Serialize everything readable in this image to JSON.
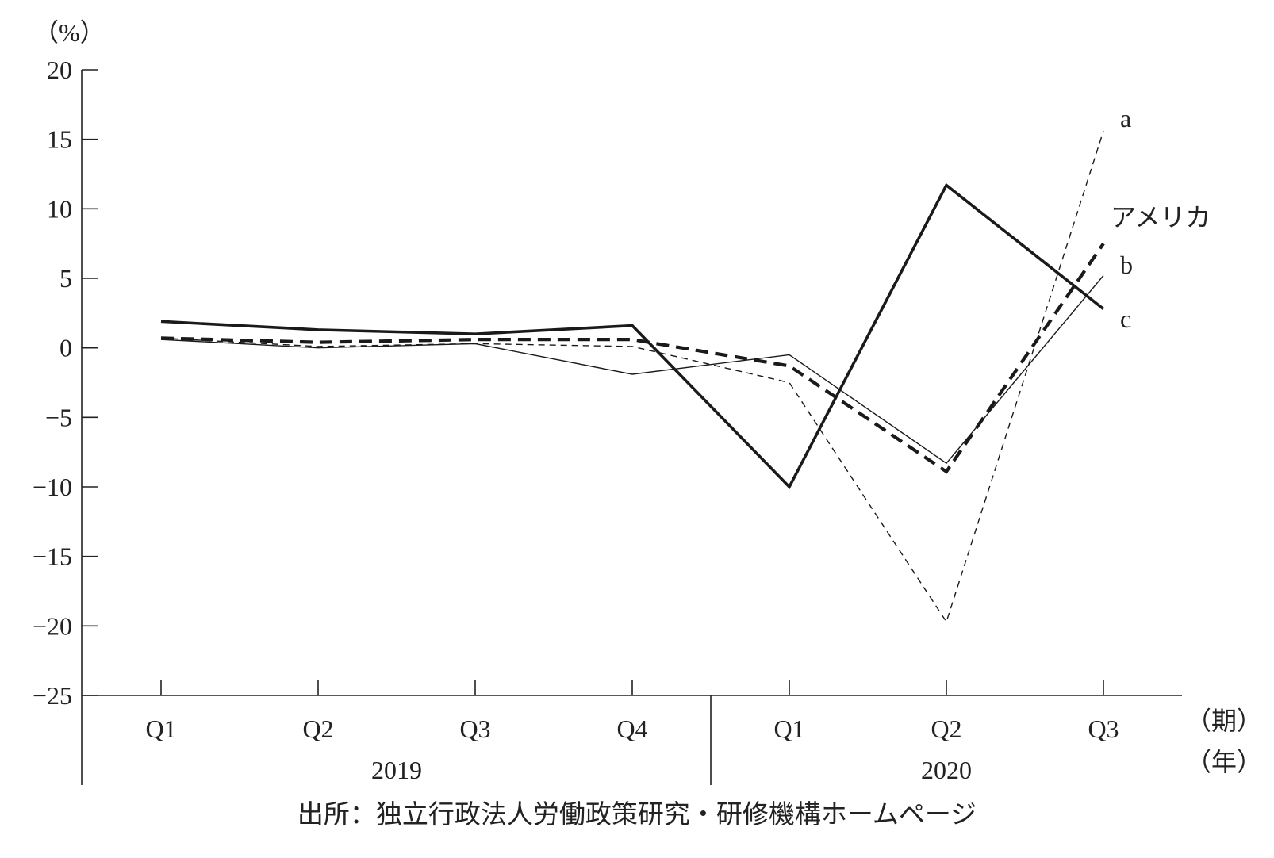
{
  "chart_data": {
    "type": "line",
    "ylabel": "（%）",
    "ylim": [
      -25,
      20
    ],
    "yticks": [
      20,
      15,
      10,
      5,
      0,
      -5,
      -10,
      -15,
      -20,
      -25
    ],
    "x_period_label": "（期）",
    "x_year_label": "（年）",
    "categories": [
      "Q1",
      "Q2",
      "Q3",
      "Q4",
      "Q1",
      "Q2",
      "Q3"
    ],
    "years": [
      {
        "label": "2019",
        "from": 0,
        "to": 3
      },
      {
        "label": "2020",
        "from": 4,
        "to": 6
      }
    ],
    "series": [
      {
        "name": "a",
        "style": "thin-dashed",
        "values": [
          0.7,
          0.1,
          0.3,
          0.1,
          -2.5,
          -19.7,
          15.6
        ]
      },
      {
        "name": "アメリカ",
        "style": "bold-dashed",
        "values": [
          0.7,
          0.4,
          0.6,
          0.6,
          -1.3,
          -8.9,
          7.5
        ]
      },
      {
        "name": "b",
        "style": "thin-solid",
        "values": [
          0.6,
          0.0,
          0.3,
          -1.9,
          -0.5,
          -8.3,
          5.2
        ]
      },
      {
        "name": "c",
        "style": "bold-solid",
        "values": [
          1.9,
          1.3,
          1.0,
          1.6,
          -10.0,
          11.7,
          2.8
        ]
      }
    ],
    "grid": false,
    "legend": "labels at line ends (right)",
    "source_note": "出所：独立行政法人労働政策研究・研修機構ホームページ"
  }
}
